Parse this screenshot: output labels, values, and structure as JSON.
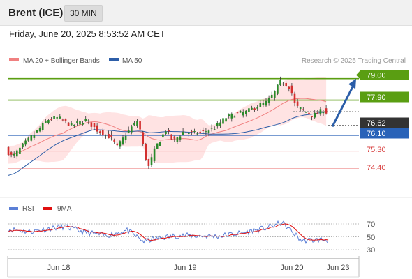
{
  "header": {
    "instrument": "Brent (ICE)",
    "timeframe": "30 MIN"
  },
  "datetime": "Friday, June 20, 2025 8:53:52 AM CET",
  "colors": {
    "green": "#5a9e12",
    "blue": "#2962b8",
    "red": "#d94343",
    "band": "#ffd9d9",
    "ma20": "#f08080",
    "ma50": "#2d5ea8",
    "candle_up": "#2a8a2a",
    "candle_down": "#d32f2f",
    "rsi": "#5b7fd6",
    "rsi_ma": "#e01010"
  },
  "chart_data": [
    {
      "type": "candlestick",
      "legend": [
        {
          "label": "MA 20 + Bollinger Bands",
          "color": "#f08080"
        },
        {
          "label": "MA 50",
          "color": "#2d5ea8"
        }
      ],
      "credit": "Research © 2025 Trading Central",
      "levels": [
        {
          "value": 79.0,
          "label": "79.00",
          "style": "resistance"
        },
        {
          "value": 77.9,
          "label": "77.90",
          "style": "resistance"
        },
        {
          "value": 76.62,
          "label": "76.62",
          "style": "current"
        },
        {
          "value": 76.1,
          "label": "76.10",
          "style": "pivot"
        },
        {
          "value": 75.3,
          "label": "75.30",
          "style": "support"
        },
        {
          "value": 74.4,
          "label": "74.40",
          "style": "support"
        }
      ],
      "ylim": [
        73.4,
        79.45
      ],
      "xlabels": [
        "Jun 18",
        "Jun 19",
        "Jun 20",
        "Jun 23"
      ],
      "arrow": {
        "from": 76.55,
        "to": 79.0
      }
    },
    {
      "type": "line",
      "legend": [
        {
          "label": "RSI",
          "color": "#5b7fd6"
        },
        {
          "label": "9MA",
          "color": "#e01010"
        }
      ],
      "ticks": [
        70,
        50,
        30
      ],
      "ylim": [
        20,
        80
      ]
    }
  ]
}
